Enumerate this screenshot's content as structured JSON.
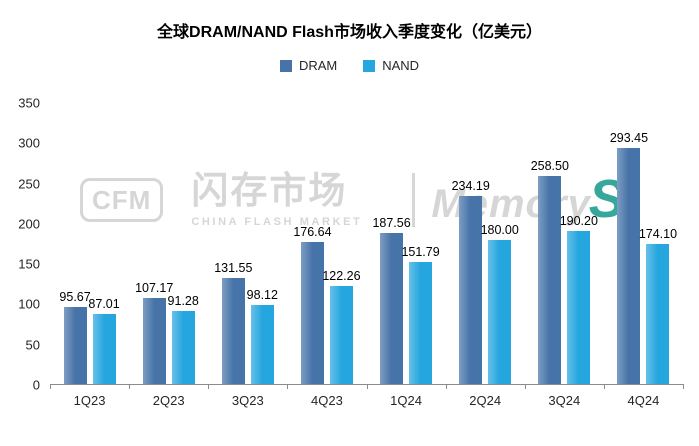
{
  "title": "全球DRAM/NAND Flash市场收入季度变化（亿美元）",
  "legend": [
    {
      "label": "DRAM",
      "color": "#4673A8"
    },
    {
      "label": "NAND",
      "color": "#25A6DF"
    }
  ],
  "watermark": {
    "cfm": "CFM",
    "cn": "闪存市场",
    "en": "CHINA FLASH MARKET",
    "brand": "Memory",
    "brand_s": "S",
    "gray": "#D6D6D6",
    "s_color": "#35A89B"
  },
  "chart_data": {
    "type": "bar",
    "title": "全球DRAM/NAND Flash市场收入季度变化（亿美元）",
    "categories": [
      "1Q23",
      "2Q23",
      "3Q23",
      "4Q23",
      "1Q24",
      "2Q24",
      "3Q24",
      "4Q24"
    ],
    "series": [
      {
        "name": "DRAM",
        "color": "#4673A8",
        "values": [
          95.67,
          107.17,
          131.55,
          176.64,
          187.56,
          234.19,
          258.5,
          293.45
        ]
      },
      {
        "name": "NAND",
        "color": "#25A6DF",
        "values": [
          87.01,
          91.28,
          98.12,
          122.26,
          151.79,
          180.0,
          190.2,
          174.1
        ]
      }
    ],
    "xlabel": "",
    "ylabel": "",
    "ylim": [
      0,
      350
    ],
    "yticks": [
      0,
      50,
      100,
      150,
      200,
      250,
      300,
      350
    ],
    "grid": false,
    "legend_position": "top",
    "value_label_decimals": 2
  }
}
